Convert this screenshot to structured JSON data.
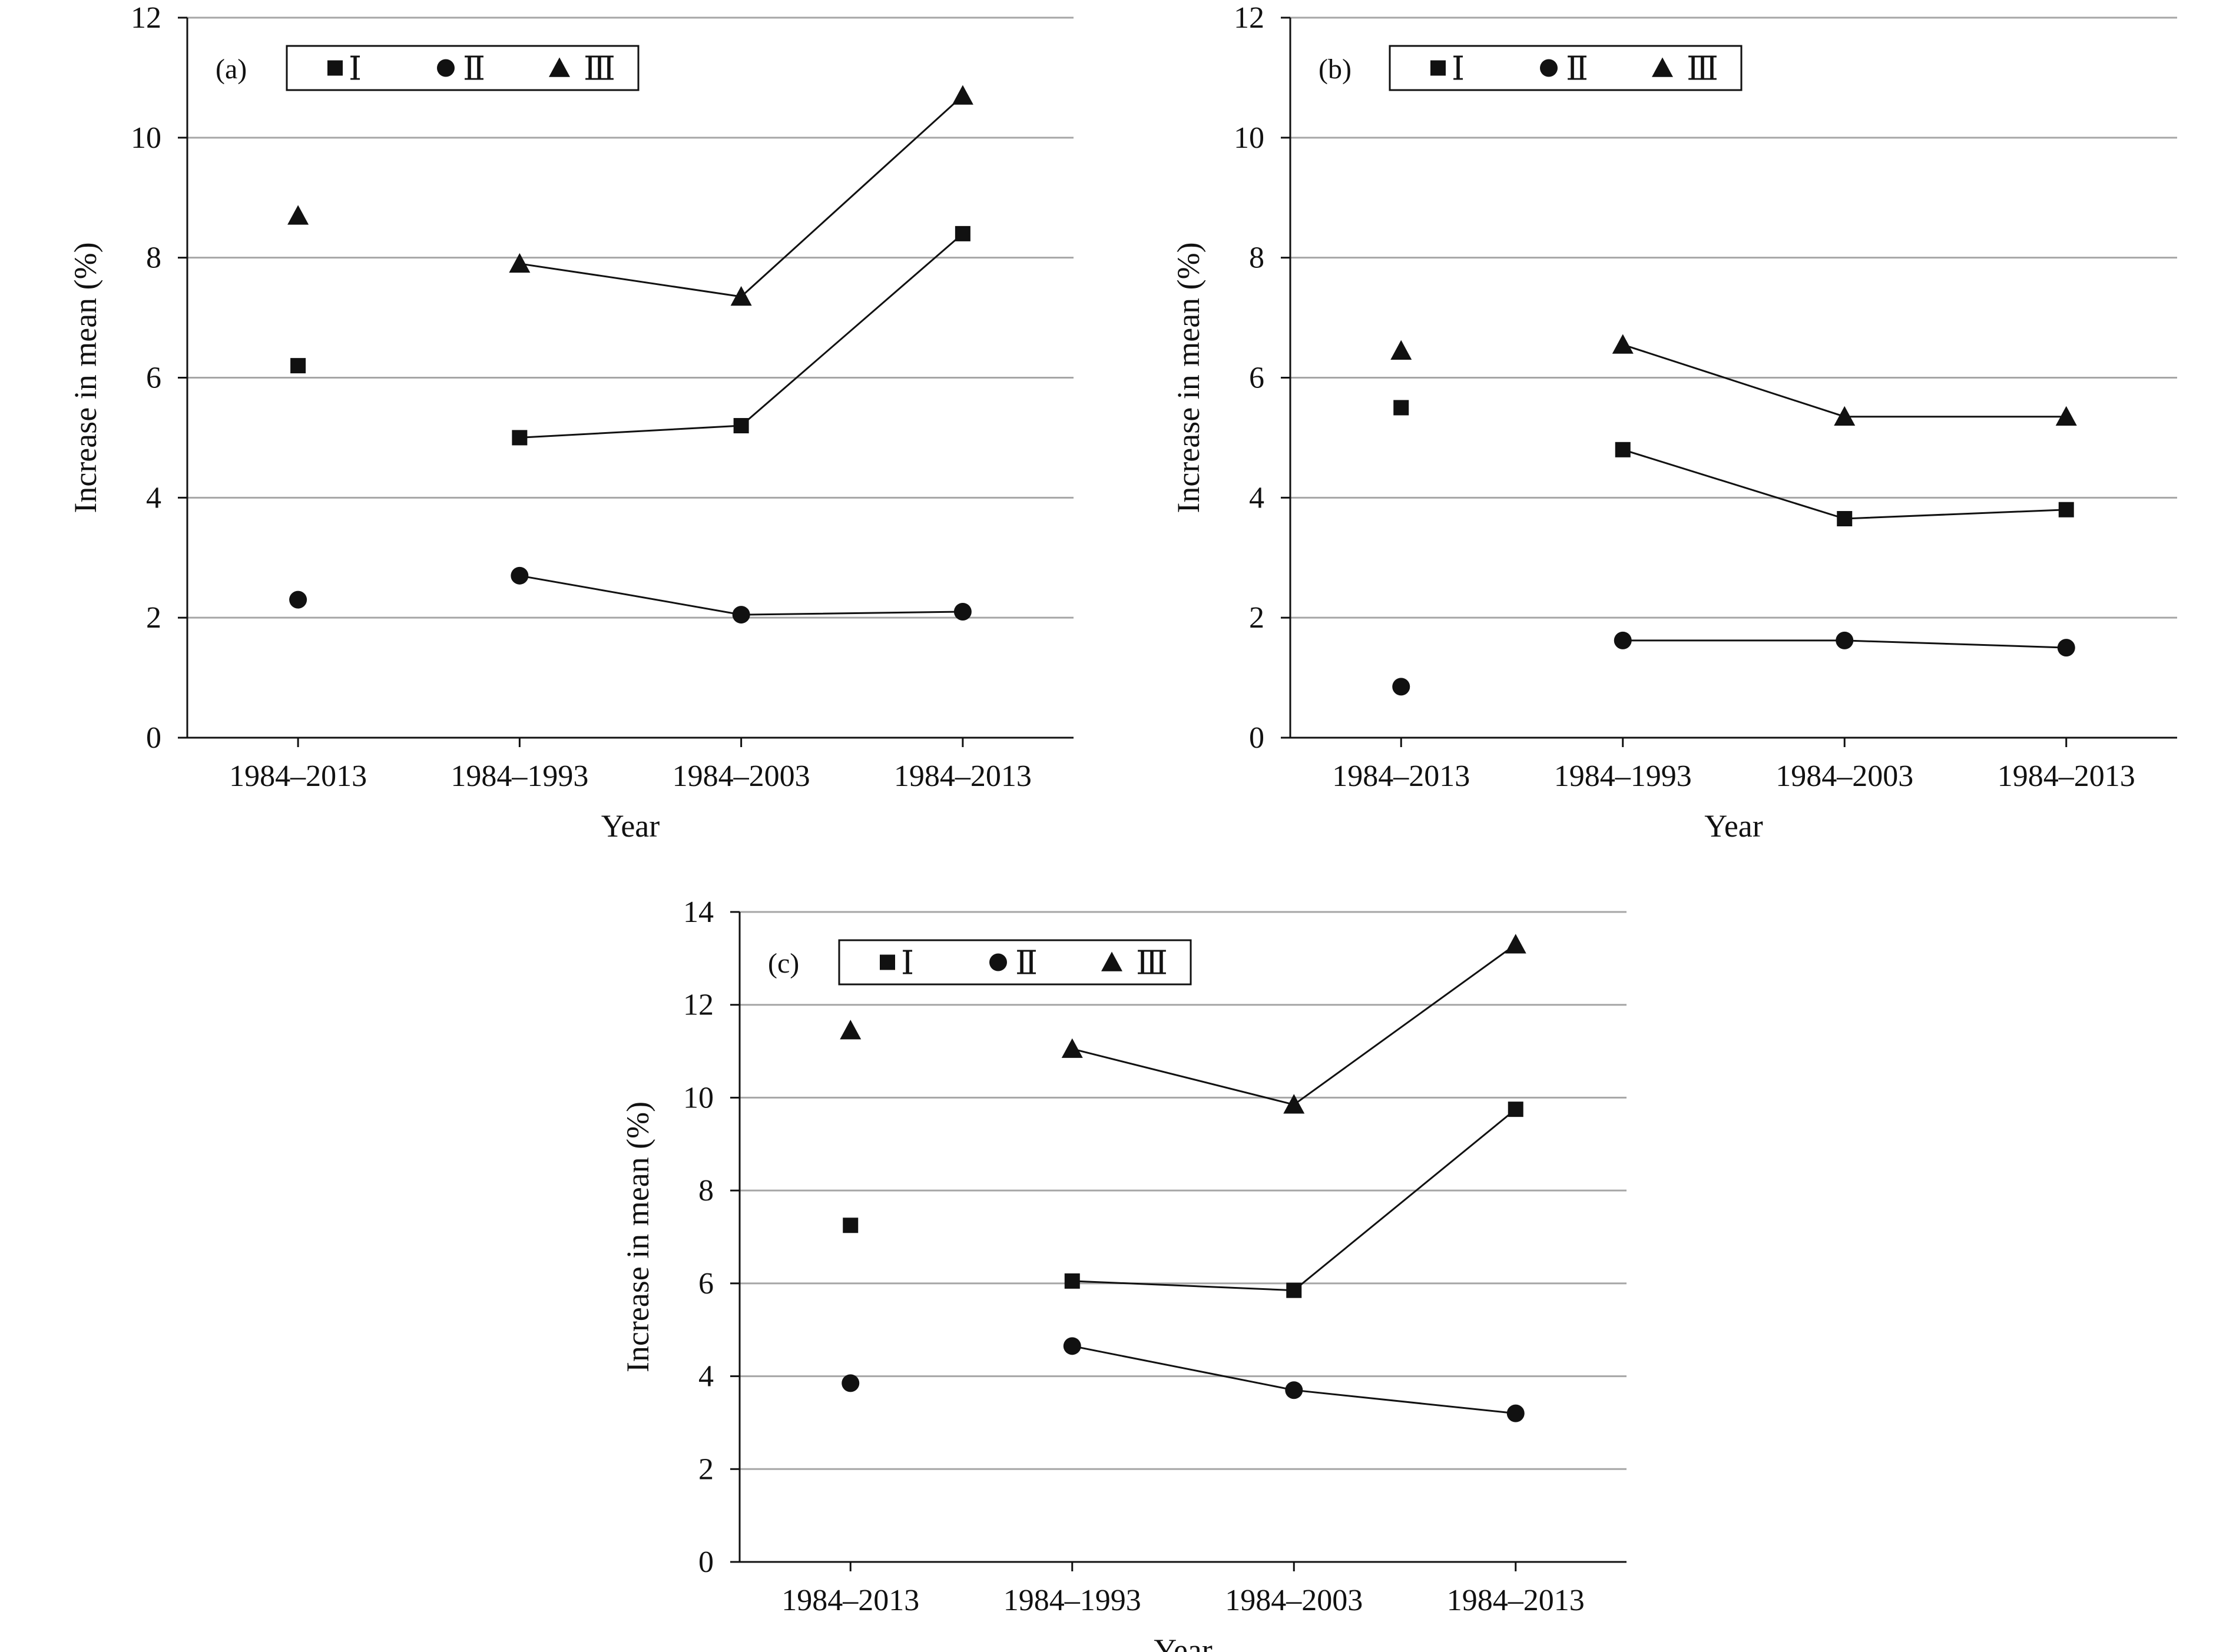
{
  "chart_data": [
    {
      "type": "line",
      "panel_label": "(a)",
      "xlabel": "Year",
      "ylabel": "Increase in mean (%)",
      "categories": [
        "1984–2013",
        "1984–1993",
        "1984–2003",
        "1984–2013"
      ],
      "ylim": [
        0,
        12
      ],
      "yticks": [
        "0",
        "2",
        "4",
        "6",
        "8",
        "10",
        "12"
      ],
      "grid": true,
      "legend_position": "top-left",
      "series": [
        {
          "name": "Ⅰ",
          "marker": "square",
          "values": [
            6.2,
            5.0,
            5.2,
            8.4
          ]
        },
        {
          "name": "Ⅱ",
          "marker": "circle",
          "values": [
            2.3,
            2.7,
            2.05,
            2.1
          ]
        },
        {
          "name": "Ⅲ",
          "marker": "triangle",
          "values": [
            8.7,
            7.9,
            7.35,
            10.7
          ]
        }
      ]
    },
    {
      "type": "line",
      "panel_label": "(b)",
      "xlabel": "Year",
      "ylabel": "Increase in mean (%)",
      "categories": [
        "1984–2013",
        "1984–1993",
        "1984–2003",
        "1984–2013"
      ],
      "ylim": [
        0,
        12
      ],
      "yticks": [
        "0",
        "2",
        "4",
        "6",
        "8",
        "10",
        "12"
      ],
      "grid": true,
      "legend_position": "top-left",
      "series": [
        {
          "name": "Ⅰ",
          "marker": "square",
          "values": [
            5.5,
            4.8,
            3.65,
            3.8
          ]
        },
        {
          "name": "Ⅱ",
          "marker": "circle",
          "values": [
            0.85,
            1.62,
            1.62,
            1.5
          ]
        },
        {
          "name": "Ⅲ",
          "marker": "triangle",
          "values": [
            6.45,
            6.55,
            5.35,
            5.35
          ]
        }
      ]
    },
    {
      "type": "line",
      "panel_label": "(c)",
      "xlabel": "Year",
      "ylabel": "Increase in mean (%)",
      "categories": [
        "1984–2013",
        "1984–1993",
        "1984–2003",
        "1984–2013"
      ],
      "ylim": [
        0,
        14
      ],
      "yticks": [
        "0",
        "2",
        "4",
        "6",
        "8",
        "10",
        "12",
        "14"
      ],
      "grid": true,
      "legend_position": "top-left",
      "series": [
        {
          "name": "Ⅰ",
          "marker": "square",
          "values": [
            7.25,
            6.05,
            5.85,
            9.75
          ]
        },
        {
          "name": "Ⅱ",
          "marker": "circle",
          "values": [
            3.85,
            4.65,
            3.7,
            3.2
          ]
        },
        {
          "name": "Ⅲ",
          "marker": "triangle",
          "values": [
            11.45,
            11.05,
            9.85,
            13.3
          ]
        }
      ]
    }
  ]
}
